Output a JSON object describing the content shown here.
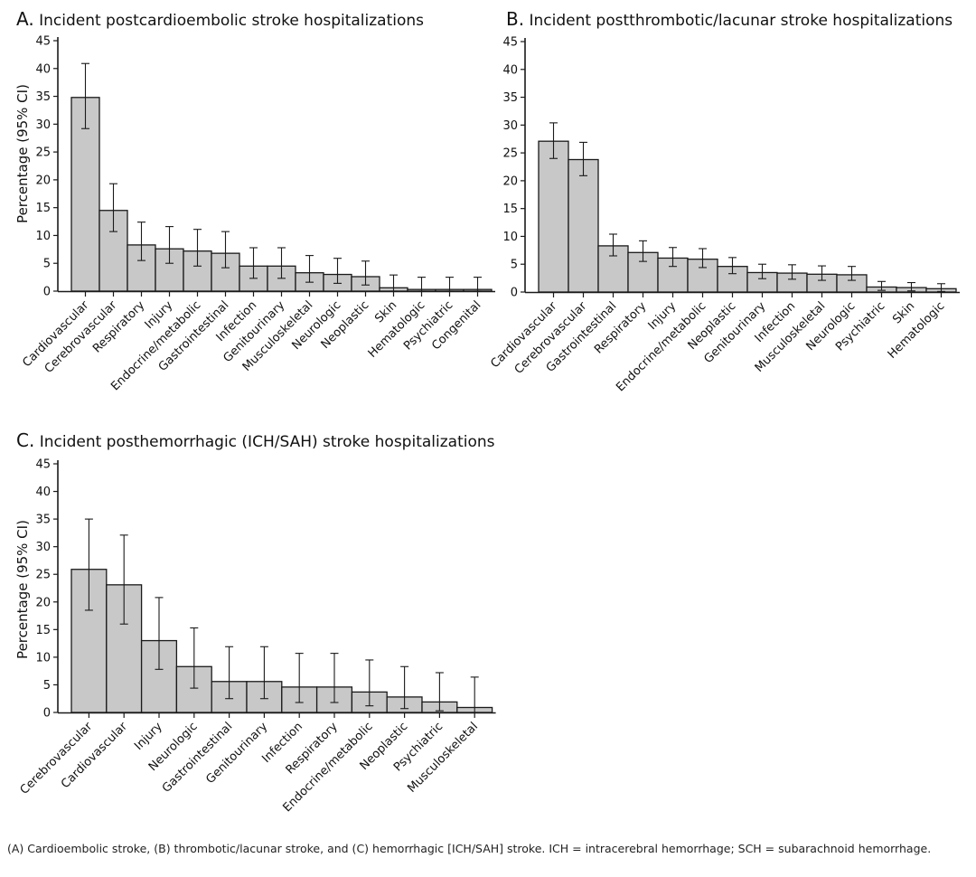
{
  "caption": "(A) Cardioembolic stroke, (B) thrombotic/lacunar stroke, and (C) hemorrhagic [ICH/SAH] stroke. ICH = intracerebral hemorrhage; SCH = subarachnoid hemorrhage.",
  "colors": {
    "bar_fill": "#c8c8c8",
    "bar_stroke": "#1a1a1a",
    "axis": "#1a1a1a"
  },
  "chart_data": [
    {
      "type": "bar",
      "panel": "A.",
      "title": "Incident postcardioembolic stroke hospitalizations",
      "ylabel": "Percentage (95% CI)",
      "xlabel": "",
      "ylim": [
        0,
        45
      ],
      "yticks": [
        0,
        5,
        10,
        15,
        20,
        25,
        30,
        35,
        40,
        45
      ],
      "categories": [
        "Cardiovascular",
        "Cerebrovascular",
        "Respiratory",
        "Injury",
        "Endocrine/metabolic",
        "Gastrointestinal",
        "Infection",
        "Genitourinary",
        "Musculoskeletal",
        "Neurologic",
        "Neoplastic",
        "Skin",
        "Hematologic",
        "Psychiatric",
        "Congenital"
      ],
      "values": [
        34.8,
        14.5,
        8.3,
        7.6,
        7.2,
        6.8,
        4.5,
        4.5,
        3.3,
        3.0,
        2.6,
        0.6,
        0.3,
        0.3,
        0.3
      ],
      "ci_low": [
        29.2,
        10.7,
        5.5,
        5.0,
        4.5,
        4.2,
        2.3,
        2.3,
        1.6,
        1.4,
        1.1,
        0.0,
        0.0,
        0.0,
        0.0
      ],
      "ci_high": [
        40.9,
        19.3,
        12.4,
        11.6,
        11.1,
        10.7,
        7.8,
        7.8,
        6.4,
        5.9,
        5.4,
        2.9,
        2.5,
        2.5,
        2.5
      ],
      "grid": false,
      "legend": "none"
    },
    {
      "type": "bar",
      "panel": "B.",
      "title": "Incident postthrombotic/lacunar stroke hospitalizations",
      "ylabel": "",
      "xlabel": "",
      "ylim": [
        0,
        45
      ],
      "yticks": [
        0,
        5,
        10,
        15,
        20,
        25,
        30,
        35,
        40,
        45
      ],
      "categories": [
        "Cardiovascular",
        "Cerebrovascular",
        "Gastrointestinal",
        "Respiratory",
        "Injury",
        "Endocrine/metabolic",
        "Neoplastic",
        "Genitourinary",
        "Infection",
        "Musculoskeletal",
        "Neurologic",
        "Psychiatric",
        "Skin",
        "Hematologic"
      ],
      "values": [
        27.1,
        23.8,
        8.3,
        7.1,
        6.1,
        5.9,
        4.6,
        3.5,
        3.4,
        3.2,
        3.1,
        0.9,
        0.8,
        0.6
      ],
      "ci_low": [
        24.0,
        20.9,
        6.5,
        5.5,
        4.6,
        4.4,
        3.3,
        2.4,
        2.3,
        2.1,
        2.1,
        0.3,
        0.2,
        0.1
      ],
      "ci_high": [
        30.4,
        26.9,
        10.4,
        9.2,
        8.0,
        7.8,
        6.2,
        5.0,
        4.9,
        4.7,
        4.6,
        1.9,
        1.7,
        1.5
      ],
      "grid": false,
      "legend": "none"
    },
    {
      "type": "bar",
      "panel": "C.",
      "title": "Incident posthemorrhagic (ICH/SAH) stroke hospitalizations",
      "ylabel": "Percentage (95% CI)",
      "xlabel": "",
      "ylim": [
        0,
        45
      ],
      "yticks": [
        0,
        5,
        10,
        15,
        20,
        25,
        30,
        35,
        40,
        45
      ],
      "categories": [
        "Cerebrovascular",
        "Cardiovascular",
        "Injury",
        "Neurologic",
        "Gastrointestinal",
        "Genitourinary",
        "Infection",
        "Respiratory",
        "Endocrine/metabolic",
        "Neoplastic",
        "Psychiatric",
        "Musculoskeletal"
      ],
      "values": [
        25.9,
        23.1,
        13.0,
        8.3,
        5.6,
        5.6,
        4.6,
        4.6,
        3.7,
        2.8,
        1.9,
        0.9
      ],
      "ci_low": [
        18.5,
        16.0,
        7.8,
        4.4,
        2.5,
        2.5,
        1.8,
        1.8,
        1.2,
        0.7,
        0.3,
        0.0
      ],
      "ci_high": [
        35.0,
        32.1,
        20.8,
        15.3,
        11.9,
        11.9,
        10.7,
        10.7,
        9.5,
        8.3,
        7.2,
        6.4
      ],
      "grid": false,
      "legend": "none"
    }
  ]
}
